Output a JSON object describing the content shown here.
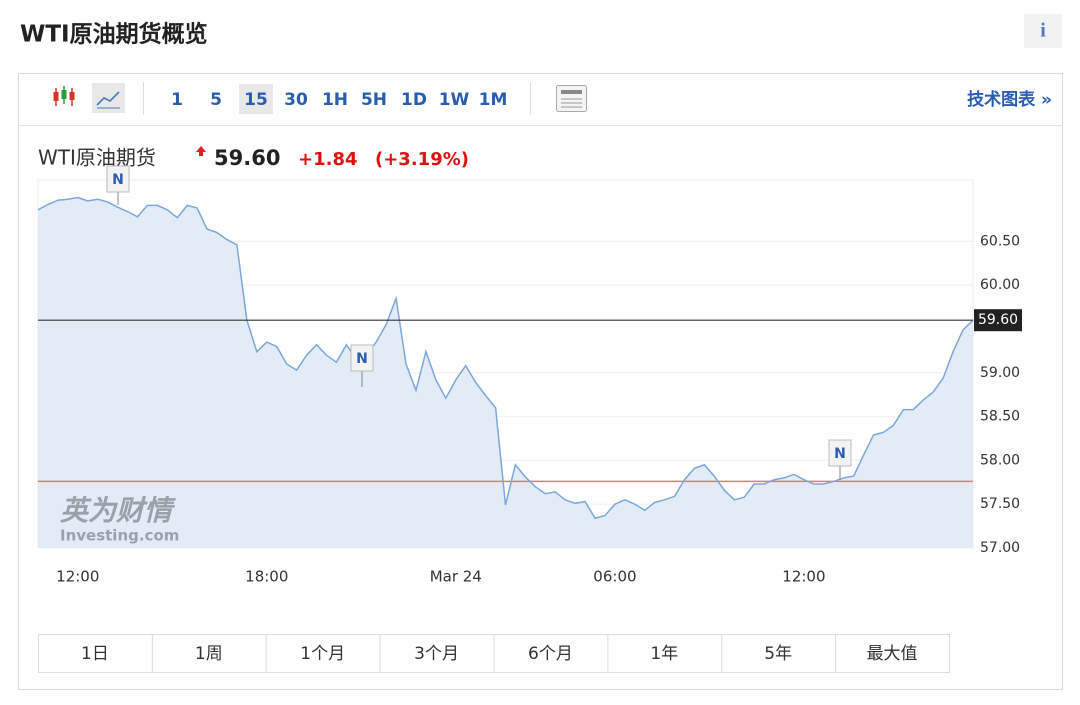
{
  "header": {
    "title": "WTI原油期货概览",
    "info": "i"
  },
  "toolbar": {
    "intervals": [
      "1",
      "5",
      "15",
      "30",
      "1H",
      "5H",
      "1D",
      "1W",
      "1M"
    ],
    "selected_interval_index": 2,
    "advanced_chart": "技术图表 »"
  },
  "quote": {
    "name": "WTI原油期货",
    "price": "59.60",
    "change": "+1.84",
    "change_pct": "(+3.19%)"
  },
  "chart_data": {
    "type": "line",
    "categories": [
      null,
      null,
      null,
      null,
      "12:00",
      null,
      null,
      null,
      null,
      null,
      null,
      null,
      null,
      null,
      null,
      null,
      null,
      null,
      null,
      null,
      null,
      null,
      null,
      "18:00",
      null,
      null,
      null,
      null,
      null,
      null,
      null,
      null,
      null,
      null,
      null,
      null,
      null,
      null,
      null,
      null,
      null,
      null,
      "Mar 24",
      null,
      null,
      null,
      null,
      null,
      null,
      null,
      null,
      null,
      null,
      null,
      null,
      null,
      null,
      null,
      "06:00",
      null,
      null,
      null,
      null,
      null,
      null,
      null,
      null,
      null,
      null,
      null,
      null,
      null,
      null,
      null,
      null,
      null,
      null,
      "12:00",
      null,
      null,
      null,
      null,
      null,
      null,
      null,
      null,
      null,
      null,
      null,
      null,
      null,
      null,
      null,
      null,
      null
    ],
    "values": [
      60.86,
      60.92,
      60.97,
      60.98,
      61.0,
      60.96,
      60.98,
      60.95,
      60.89,
      60.84,
      60.78,
      60.91,
      60.91,
      60.86,
      60.77,
      60.91,
      60.88,
      60.64,
      60.6,
      60.52,
      60.46,
      59.6,
      59.24,
      59.35,
      59.3,
      59.1,
      59.03,
      59.2,
      59.32,
      59.2,
      59.12,
      59.32,
      59.15,
      59.2,
      59.35,
      59.55,
      59.85,
      59.1,
      58.8,
      59.24,
      58.92,
      58.71,
      58.92,
      59.08,
      58.89,
      58.74,
      58.6,
      57.49,
      57.95,
      57.81,
      57.7,
      57.62,
      57.64,
      57.55,
      57.51,
      57.53,
      57.34,
      57.37,
      57.5,
      57.55,
      57.5,
      57.43,
      57.52,
      57.55,
      57.59,
      57.78,
      57.91,
      57.95,
      57.82,
      57.66,
      57.55,
      57.58,
      57.73,
      57.73,
      57.78,
      57.8,
      57.84,
      57.78,
      57.73,
      57.73,
      57.76,
      57.8,
      57.82,
      58.06,
      58.29,
      58.32,
      58.4,
      58.58,
      58.58,
      58.69,
      58.78,
      58.94,
      59.24,
      59.49,
      59.6
    ],
    "color": "#7ba7d9",
    "area_color": "#e3ecf6",
    "ylim": [
      57,
      61.2
    ],
    "yticks": [
      {
        "value": 57,
        "label": "57.00"
      },
      {
        "value": 57.5,
        "label": "57.50"
      },
      {
        "value": 58,
        "label": "58.00"
      },
      {
        "value": 58.5,
        "label": "58.50"
      },
      {
        "value": 59,
        "label": "59.00"
      },
      {
        "value": 60,
        "label": "60.00"
      },
      {
        "value": 60.5,
        "label": "60.50"
      }
    ],
    "grid": true,
    "last_price": {
      "value": 59.6,
      "label": "59.60"
    },
    "prev_close": 57.76,
    "news_markers": [
      "N",
      "N",
      "N"
    ],
    "watermark": {
      "cn": "英为财情",
      "en": "Investing.com"
    }
  },
  "ranges": [
    "1日",
    "1周",
    "1个月",
    "3个月",
    "6个月",
    "1年",
    "5年",
    "最大值"
  ]
}
